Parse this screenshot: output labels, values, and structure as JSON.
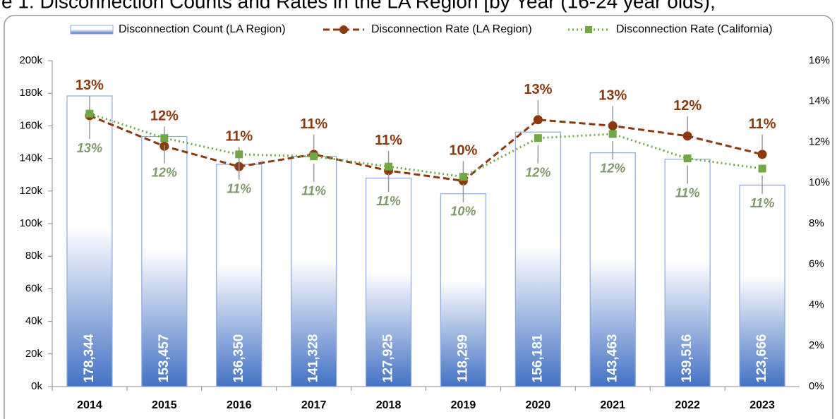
{
  "chart_data": {
    "type": "bar-line",
    "title": "e 1: Disconnection Counts and Rates in the LA Region [by Year (16-24 year olds),",
    "categories": [
      "2014",
      "2015",
      "2016",
      "2017",
      "2018",
      "2019",
      "2020",
      "2021",
      "2022",
      "2023"
    ],
    "series": [
      {
        "name": "Disconnection Count (LA Region)",
        "color": "#4472c4",
        "type": "bar",
        "values": [
          178344,
          153457,
          136350,
          141328,
          127925,
          118299,
          156181,
          143463,
          139516,
          123666
        ],
        "value_labels": [
          "178,344",
          "153,457",
          "136,350",
          "141,328",
          "127,925",
          "118,299",
          "156,181",
          "143,463",
          "139,516",
          "123,666"
        ]
      },
      {
        "name": "Disconnection Rate (LA Region)",
        "color": "#8b3a0f",
        "type": "line",
        "axis": "y2",
        "values": [
          13.3,
          11.8,
          10.8,
          11.4,
          10.6,
          10.1,
          13.1,
          12.8,
          12.3,
          11.4
        ],
        "value_labels": [
          "13%",
          "12%",
          "11%",
          "11%",
          "11%",
          "10%",
          "13%",
          "13%",
          "12%",
          "11%"
        ]
      },
      {
        "name": "Disconnection Rate (California)",
        "color": "#70a845",
        "type": "line",
        "axis": "y2",
        "values": [
          13.4,
          12.2,
          11.4,
          11.3,
          10.8,
          10.3,
          12.2,
          12.4,
          11.2,
          10.7
        ],
        "value_labels": [
          "13%",
          "12%",
          "11%",
          "11%",
          "11%",
          "10%",
          "12%",
          "12%",
          "11%",
          "11%"
        ]
      }
    ],
    "ylim": [
      0,
      200000
    ],
    "yticks": [
      {
        "value": 0,
        "label": "0k"
      },
      {
        "value": 20000,
        "label": "20k"
      },
      {
        "value": 40000,
        "label": "40k"
      },
      {
        "value": 60000,
        "label": "60k"
      },
      {
        "value": 80000,
        "label": "80k"
      },
      {
        "value": 100000,
        "label": "100k"
      },
      {
        "value": 120000,
        "label": "120k"
      },
      {
        "value": 140000,
        "label": "140k"
      },
      {
        "value": 160000,
        "label": "160k"
      },
      {
        "value": 180000,
        "label": "180k"
      },
      {
        "value": 200000,
        "label": "200k"
      }
    ],
    "y2lim": [
      0,
      16
    ],
    "y2ticks": [
      {
        "value": 0,
        "label": "0%"
      },
      {
        "value": 2,
        "label": "2%"
      },
      {
        "value": 4,
        "label": "4%"
      },
      {
        "value": 6,
        "label": "6%"
      },
      {
        "value": 8,
        "label": "8%"
      },
      {
        "value": 10,
        "label": "10%"
      },
      {
        "value": 12,
        "label": "12%"
      },
      {
        "value": 14,
        "label": "14%"
      },
      {
        "value": 16,
        "label": "16%"
      }
    ],
    "grid": false,
    "legend": "top"
  }
}
